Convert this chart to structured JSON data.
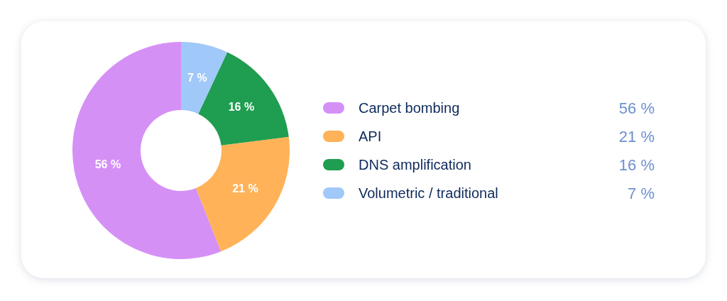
{
  "chart_data": {
    "type": "donut",
    "categories": [
      "Carpet bombing",
      "API",
      "DNS amplification",
      "Volumetric / traditional"
    ],
    "values": [
      56,
      21,
      16,
      7
    ],
    "colors": [
      "#d590f6",
      "#ffb257",
      "#1f9d50",
      "#a0c8f8"
    ],
    "value_labels": [
      "56 %",
      "21 %",
      "16 %",
      "7 %"
    ],
    "legend": "right"
  }
}
